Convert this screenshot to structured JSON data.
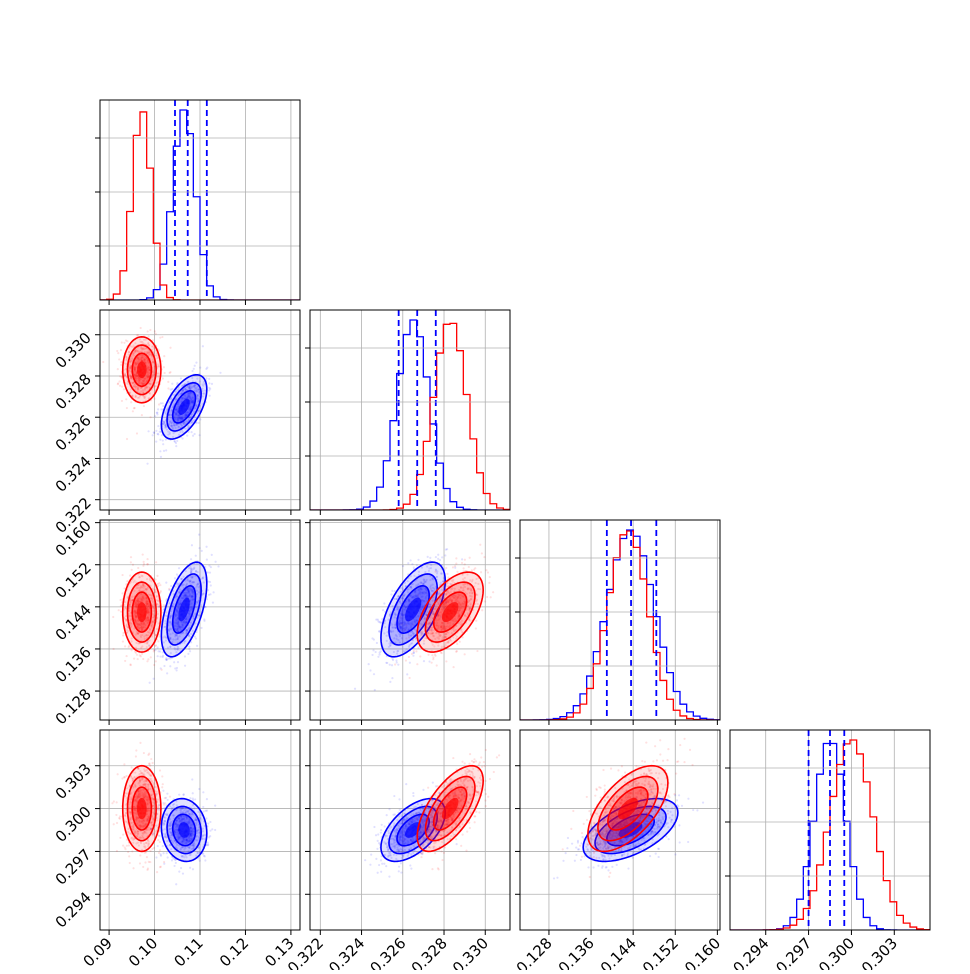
{
  "chart_data": {
    "type": "corner",
    "title": "",
    "parameters": [
      "",
      "",
      "",
      ""
    ],
    "ranges": [
      [
        0.088,
        0.132
      ],
      [
        0.3215,
        0.3312
      ],
      [
        0.1225,
        0.1605
      ],
      [
        0.2915,
        0.3055
      ]
    ],
    "ticks": [
      [
        "0.09",
        "0.10",
        "0.11",
        "0.12",
        "0.13"
      ],
      [
        "0.322",
        "0.324",
        "0.326",
        "0.328",
        "0.330"
      ],
      [
        "0.128",
        "0.136",
        "0.144",
        "0.152",
        "0.160"
      ],
      [
        "0.294",
        "0.297",
        "0.300",
        "0.303"
      ]
    ],
    "grid": true,
    "series": [
      {
        "color": "#0000ff",
        "means": [
          0.1065,
          0.3265,
          0.1435,
          0.2985
        ],
        "sigmas": [
          0.0025,
          0.00078,
          0.0045,
          0.0011
        ],
        "quantiles": [
          [
            0.1045,
            0.1073,
            0.1115
          ],
          [
            0.3258,
            0.3267,
            0.3276
          ],
          [
            0.139,
            0.1436,
            0.1484
          ],
          [
            0.297,
            0.2985,
            0.2995
          ]
        ]
      },
      {
        "color": "#ff0000",
        "means": [
          0.0972,
          0.3283,
          0.143,
          0.3
        ],
        "sigmas": [
          0.0021,
          0.0008,
          0.0038,
          0.0015
        ],
        "quantiles": []
      }
    ],
    "correlations": {
      "blue": [
        [
          1,
          0.55,
          0.55,
          -0.1
        ],
        [
          0.55,
          1,
          0.6,
          0.55
        ],
        [
          0.55,
          0.6,
          1,
          0.55
        ],
        [
          -0.1,
          0.55,
          0.55,
          1
        ]
      ],
      "red": [
        [
          1,
          0.0,
          0.0,
          0.0
        ],
        [
          0.0,
          1,
          0.55,
          0.65
        ],
        [
          0.0,
          0.55,
          1,
          0.6
        ],
        [
          0.0,
          0.65,
          0.6,
          1
        ]
      ]
    }
  }
}
